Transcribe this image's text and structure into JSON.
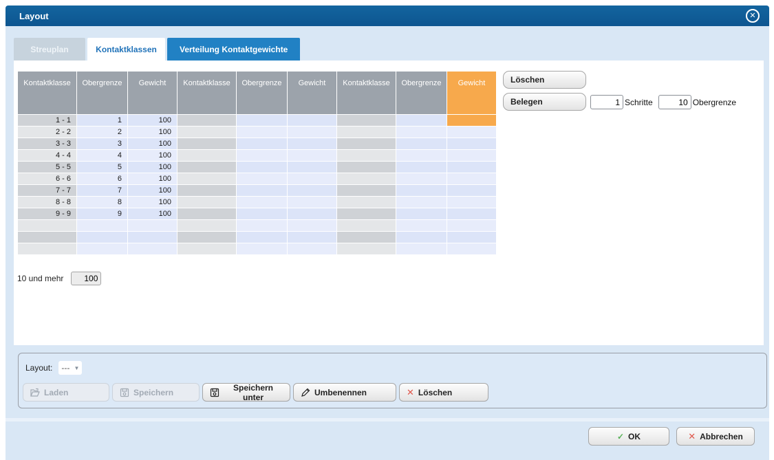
{
  "dialog": {
    "title": "Layout",
    "close_icon": "✕"
  },
  "tabs": [
    {
      "label": "Streuplan",
      "state": "disabled"
    },
    {
      "label": "Kontaktklassen",
      "state": "active"
    },
    {
      "label": "Verteilung Kontaktgewichte",
      "state": "inactive"
    }
  ],
  "table": {
    "column_headers": [
      "Kontaktklasse",
      "Obergrenze",
      "Gewicht",
      "Kontaktklasse",
      "Obergrenze",
      "Gewicht",
      "Kontaktklasse",
      "Obergrenze",
      "Gewicht"
    ],
    "rows": [
      {
        "kontaktklasse": "1 - 1",
        "obergrenze": "1",
        "gewicht": "100"
      },
      {
        "kontaktklasse": "2 - 2",
        "obergrenze": "2",
        "gewicht": "100"
      },
      {
        "kontaktklasse": "3 - 3",
        "obergrenze": "3",
        "gewicht": "100"
      },
      {
        "kontaktklasse": "4 - 4",
        "obergrenze": "4",
        "gewicht": "100"
      },
      {
        "kontaktklasse": "5 - 5",
        "obergrenze": "5",
        "gewicht": "100"
      },
      {
        "kontaktklasse": "6 - 6",
        "obergrenze": "6",
        "gewicht": "100"
      },
      {
        "kontaktklasse": "7 - 7",
        "obergrenze": "7",
        "gewicht": "100"
      },
      {
        "kontaktklasse": "8 - 8",
        "obergrenze": "8",
        "gewicht": "100"
      },
      {
        "kontaktklasse": "9 - 9",
        "obergrenze": "9",
        "gewicht": "100"
      },
      {
        "kontaktklasse": "",
        "obergrenze": "",
        "gewicht": ""
      },
      {
        "kontaktklasse": "",
        "obergrenze": "",
        "gewicht": ""
      },
      {
        "kontaktklasse": "",
        "obergrenze": "",
        "gewicht": ""
      }
    ],
    "selected_cell": {
      "row_index": 0,
      "column_index": 8
    }
  },
  "side_controls": {
    "loeschen_label": "Löschen",
    "belegen_label": "Belegen",
    "schritte_value": "1",
    "schritte_label": "Schritte",
    "obergrenze_value": "10",
    "obergrenze_label": "Obergrenze"
  },
  "more_row": {
    "label": "10 und mehr",
    "value": "100"
  },
  "layout_panel": {
    "label": "Layout:",
    "dropdown_value": "---",
    "buttons": [
      {
        "label": "Laden",
        "icon": "folder-open-icon",
        "enabled": false
      },
      {
        "label": "Speichern",
        "icon": "floppy-icon",
        "enabled": false
      },
      {
        "label": "Speichern unter",
        "icon": "floppy-icon",
        "enabled": true
      },
      {
        "label": "Umbenennen",
        "icon": "pencil-icon",
        "enabled": true
      },
      {
        "label": "Löschen",
        "icon": "x-icon",
        "enabled": true
      }
    ]
  },
  "footer": {
    "ok_label": "OK",
    "cancel_label": "Abbrechen"
  },
  "colors": {
    "titlebar": "#0d5590",
    "dialog_bg": "#d9e7f5",
    "active_tab_text": "#2173b9",
    "tab_blue": "#2181c4",
    "header_gray": "#9ca3ab",
    "highlight_orange": "#f7a94c",
    "row_blue_dark": "#dce4f8",
    "row_blue_light": "#e7ecfb",
    "ok_green": "#58b158",
    "cancel_red": "#e0564a"
  }
}
